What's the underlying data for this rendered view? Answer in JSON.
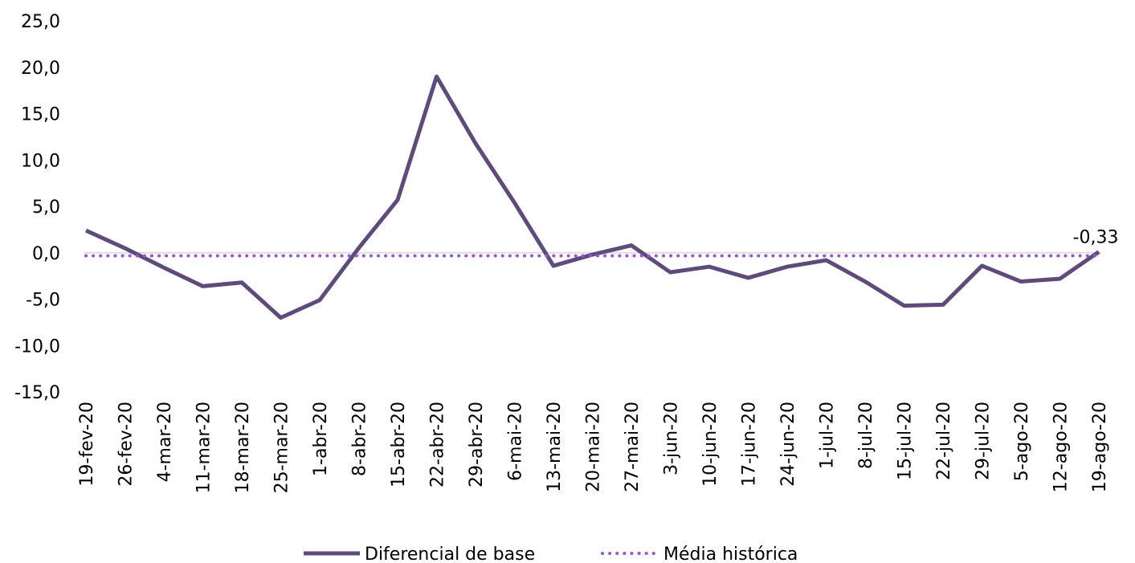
{
  "chart_data": {
    "type": "line",
    "categories": [
      "19-fev-20",
      "26-fev-20",
      "4-mar-20",
      "11-mar-20",
      "18-mar-20",
      "25-mar-20",
      "1-abr-20",
      "8-abr-20",
      "15-abr-20",
      "22-abr-20",
      "29-abr-20",
      "6-mai-20",
      "13-mai-20",
      "20-mai-20",
      "27-mai-20",
      "3-jun-20",
      "10-jun-20",
      "17-jun-20",
      "24-jun-20",
      "1-jul-20",
      "8-jul-20",
      "15-jul-20",
      "22-jul-20",
      "29-jul-20",
      "5-ago-20",
      "12-ago-20",
      "19-ago-20"
    ],
    "series": [
      {
        "name": "Diferencial de base",
        "color": "#5e4b7c",
        "style": "solid",
        "values": [
          2.4,
          0.5,
          -1.6,
          -3.6,
          -3.2,
          -7.0,
          -5.1,
          0.5,
          5.7,
          19.0,
          11.8,
          5.4,
          -1.4,
          -0.2,
          0.8,
          -2.1,
          -1.5,
          -2.7,
          -1.5,
          -0.8,
          -3.1,
          -5.7,
          -5.6,
          -1.4,
          -3.1,
          -2.8,
          0.1
        ]
      },
      {
        "name": "Média histórica",
        "color": "#9b55d4",
        "style": "dotted",
        "values": [
          -0.33,
          -0.33,
          -0.33,
          -0.33,
          -0.33,
          -0.33,
          -0.33,
          -0.33,
          -0.33,
          -0.33,
          -0.33,
          -0.33,
          -0.33,
          -0.33,
          -0.33,
          -0.33,
          -0.33,
          -0.33,
          -0.33,
          -0.33,
          -0.33,
          -0.33,
          -0.33,
          -0.33,
          -0.33,
          -0.33,
          -0.33
        ],
        "value_labels": [
          null,
          null,
          null,
          null,
          null,
          null,
          null,
          null,
          null,
          null,
          null,
          null,
          null,
          null,
          null,
          null,
          null,
          null,
          null,
          null,
          null,
          null,
          null,
          null,
          null,
          null,
          "-0,33"
        ]
      }
    ],
    "ylim": [
      -15,
      25
    ],
    "yticks": [
      {
        "value": -15,
        "label": "-15,0"
      },
      {
        "value": -10,
        "label": "-10,0"
      },
      {
        "value": -5,
        "label": "-5,0"
      },
      {
        "value": 0,
        "label": "0,0"
      },
      {
        "value": 5,
        "label": "5,0"
      },
      {
        "value": 10,
        "label": "10,0"
      },
      {
        "value": 15,
        "label": "15,0"
      },
      {
        "value": 20,
        "label": "20,0"
      },
      {
        "value": 25,
        "label": "25,0"
      }
    ],
    "legend": "bottom"
  }
}
